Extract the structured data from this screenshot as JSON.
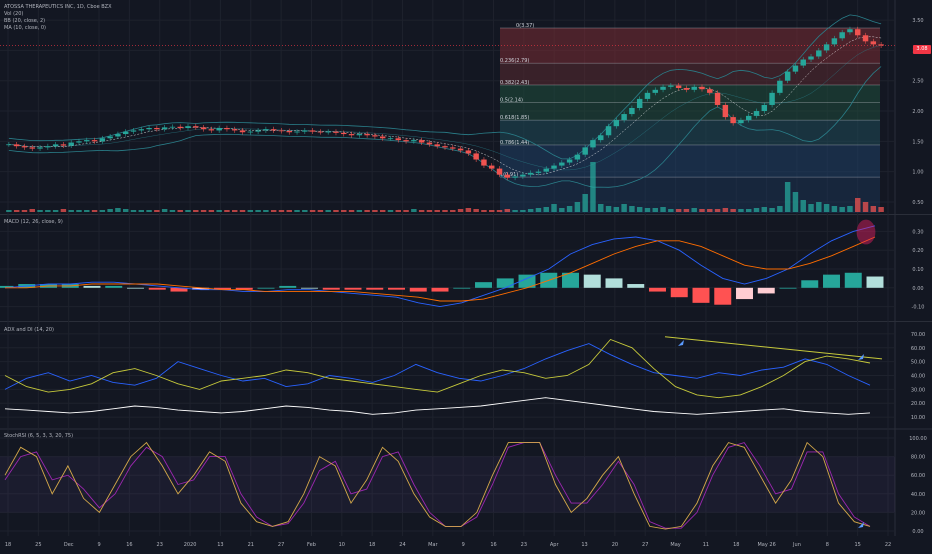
{
  "legend": {
    "title": "ATOSSA THERAPEUTICS INC, 1D, Cboe BZX",
    "vol": "Vol (20)",
    "bb": "BB (20, close, 2)",
    "ma": "MA (10, close, 0)"
  },
  "last_price": "3.08",
  "indicator_titles": {
    "macd": "MACD (12, 26, close, 9)",
    "adx": "ADX and DI (14, 20)",
    "stoch": "StochRSI (6, 5, 3, 3, 20, 75)"
  },
  "colors": {
    "up": "#26a69a",
    "down": "#ef5350",
    "background": "#131722",
    "bb": "#2a7f8a",
    "ma": "#ffffff",
    "fib_red": "#7a2b33",
    "fib_green": "#1f4f3c",
    "fib_blue": "#1f3f66",
    "adx": "#ffffff",
    "di_plus": "#2962ff",
    "di_minus": "#c6c93b",
    "stoch_k": "#d4a84a",
    "stoch_d": "#9c27b0",
    "macd": "#2962ff",
    "signal": "#ff6d00"
  },
  "chart_data": [
    {
      "type": "candlestick",
      "panel": "price",
      "x_tick_labels": [
        "18",
        "25",
        "Dec",
        "9",
        "16",
        "23",
        "2020",
        "13",
        "21",
        "27",
        "Feb",
        "10",
        "18",
        "24",
        "Mar",
        "9",
        "16",
        "23",
        "Apr",
        "13",
        "20",
        "27",
        "May",
        "11",
        "18",
        "May 26",
        "Jun",
        "8",
        "15",
        "22"
      ],
      "y_ticks": [
        "3.50",
        "3.00",
        "2.50",
        "2.00",
        "1.50",
        "1.00",
        "0.50"
      ],
      "y_range": [
        0.4,
        3.7
      ],
      "fib_levels": [
        {
          "ratio": "0(3.37)",
          "value": 3.37
        },
        {
          "ratio": "0.236(2.79)",
          "value": 2.79
        },
        {
          "ratio": "0.382(2.43)",
          "value": 2.43
        },
        {
          "ratio": "0.5(2.14)",
          "value": 2.14
        },
        {
          "ratio": "0.618(1.85)",
          "value": 1.85
        },
        {
          "ratio": "0.786(1.44)",
          "value": 1.44
        },
        {
          "ratio": "1(0.91)",
          "value": 0.91
        }
      ],
      "close_series": [
        1.45,
        1.42,
        1.4,
        1.38,
        1.4,
        1.42,
        1.45,
        1.43,
        1.48,
        1.5,
        1.52,
        1.5,
        1.55,
        1.58,
        1.62,
        1.66,
        1.68,
        1.7,
        1.72,
        1.7,
        1.73,
        1.74,
        1.72,
        1.75,
        1.73,
        1.7,
        1.68,
        1.72,
        1.7,
        1.68,
        1.65,
        1.66,
        1.68,
        1.7,
        1.68,
        1.67,
        1.65,
        1.66,
        1.68,
        1.66,
        1.65,
        1.66,
        1.64,
        1.62,
        1.6,
        1.62,
        1.6,
        1.58,
        1.55,
        1.55,
        1.52,
        1.5,
        1.52,
        1.48,
        1.45,
        1.42,
        1.4,
        1.38,
        1.35,
        1.3,
        1.2,
        1.1,
        1.05,
        0.95,
        0.9,
        0.92,
        0.95,
        0.98,
        1.0,
        1.05,
        1.1,
        1.15,
        1.2,
        1.28,
        1.4,
        1.52,
        1.6,
        1.75,
        1.85,
        1.95,
        2.05,
        2.2,
        2.3,
        2.35,
        2.4,
        2.42,
        2.38,
        2.35,
        2.4,
        2.36,
        2.3,
        2.1,
        1.9,
        1.8,
        1.85,
        1.92,
        2.0,
        2.1,
        2.3,
        2.5,
        2.65,
        2.75,
        2.85,
        2.9,
        3.0,
        3.1,
        3.2,
        3.3,
        3.35,
        3.25,
        3.15,
        3.1,
        3.08
      ]
    },
    {
      "type": "bar",
      "panel": "volume",
      "values": [
        2,
        2,
        2,
        3,
        2,
        2,
        2,
        3,
        2,
        2,
        2,
        2,
        2,
        3,
        4,
        3,
        2,
        2,
        2,
        2,
        3,
        2,
        2,
        2,
        2,
        2,
        2,
        2,
        2,
        2,
        2,
        2,
        2,
        2,
        2,
        2,
        2,
        2,
        2,
        2,
        2,
        2,
        2,
        2,
        2,
        2,
        2,
        2,
        2,
        2,
        2,
        2,
        3,
        2,
        2,
        2,
        2,
        2,
        3,
        4,
        3,
        2,
        2,
        2,
        3,
        2,
        2,
        3,
        4,
        5,
        8,
        4,
        6,
        10,
        18,
        50,
        8,
        6,
        5,
        8,
        6,
        5,
        4,
        4,
        5,
        3,
        3,
        3,
        4,
        3,
        3,
        3,
        4,
        3,
        3,
        3,
        4,
        5,
        4,
        6,
        30,
        20,
        12,
        8,
        10,
        8,
        6,
        5,
        6,
        14,
        10,
        6,
        5
      ]
    },
    {
      "type": "line",
      "panel": "macd",
      "y_ticks": [
        "0.30",
        "0.20",
        "0.10",
        "0.00",
        "-0.10"
      ],
      "y_range": [
        -0.15,
        0.35
      ],
      "macd": [
        0.0,
        0.01,
        0.02,
        0.02,
        0.03,
        0.03,
        0.02,
        0.01,
        0.0,
        -0.01,
        -0.01,
        -0.02,
        -0.02,
        -0.01,
        -0.01,
        -0.02,
        -0.03,
        -0.04,
        -0.05,
        -0.08,
        -0.1,
        -0.08,
        -0.04,
        0.0,
        0.05,
        0.1,
        0.18,
        0.23,
        0.26,
        0.27,
        0.25,
        0.2,
        0.12,
        0.05,
        0.02,
        0.05,
        0.1,
        0.18,
        0.25,
        0.3,
        0.33
      ],
      "signal": [
        0.0,
        0.0,
        0.01,
        0.01,
        0.02,
        0.02,
        0.02,
        0.02,
        0.01,
        0.0,
        -0.01,
        -0.01,
        -0.02,
        -0.02,
        -0.02,
        -0.02,
        -0.02,
        -0.03,
        -0.04,
        -0.05,
        -0.07,
        -0.07,
        -0.06,
        -0.03,
        0.0,
        0.04,
        0.08,
        0.13,
        0.18,
        0.22,
        0.25,
        0.25,
        0.22,
        0.17,
        0.12,
        0.1,
        0.1,
        0.13,
        0.17,
        0.22,
        0.27
      ],
      "histogram": [
        0.01,
        0.02,
        0.02,
        0.02,
        0.01,
        0.01,
        0.0,
        -0.01,
        -0.02,
        -0.01,
        -0.01,
        -0.01,
        0.0,
        0.01,
        0.0,
        -0.01,
        -0.01,
        -0.01,
        -0.01,
        -0.02,
        -0.02,
        0.0,
        0.03,
        0.05,
        0.07,
        0.08,
        0.08,
        0.07,
        0.05,
        0.02,
        -0.02,
        -0.05,
        -0.08,
        -0.09,
        -0.06,
        -0.03,
        0.0,
        0.04,
        0.07,
        0.08,
        0.06
      ]
    },
    {
      "type": "line",
      "panel": "adx",
      "y_ticks": [
        "70.00",
        "60.00",
        "50.00",
        "40.00",
        "30.00",
        "20.00",
        "10.00"
      ],
      "y_range": [
        5,
        75
      ],
      "adx": [
        16,
        15,
        14,
        13,
        14,
        16,
        18,
        17,
        15,
        14,
        13,
        14,
        16,
        18,
        17,
        15,
        14,
        12,
        13,
        15,
        16,
        17,
        18,
        20,
        22,
        24,
        22,
        20,
        18,
        16,
        14,
        13,
        12,
        13,
        14,
        15,
        16,
        14,
        13,
        12,
        13
      ],
      "di_plus": [
        30,
        38,
        42,
        36,
        40,
        35,
        33,
        38,
        50,
        45,
        40,
        36,
        38,
        32,
        34,
        40,
        38,
        35,
        40,
        48,
        42,
        38,
        36,
        40,
        45,
        52,
        58,
        63,
        55,
        48,
        42,
        40,
        38,
        42,
        40,
        44,
        46,
        52,
        48,
        40,
        33
      ],
      "di_minus": [
        40,
        32,
        28,
        30,
        34,
        42,
        45,
        40,
        34,
        30,
        36,
        38,
        40,
        44,
        42,
        38,
        36,
        34,
        32,
        30,
        28,
        34,
        40,
        44,
        42,
        38,
        40,
        48,
        66,
        60,
        45,
        32,
        26,
        24,
        26,
        32,
        40,
        50,
        54,
        52,
        49
      ]
    },
    {
      "type": "line",
      "panel": "stochrsi",
      "y_ticks": [
        "100.00",
        "80.00",
        "60.00",
        "40.00",
        "20.00",
        "0.00"
      ],
      "y_range": [
        0,
        100
      ],
      "k": [
        60,
        90,
        80,
        40,
        70,
        35,
        20,
        50,
        80,
        95,
        70,
        40,
        60,
        85,
        75,
        30,
        10,
        5,
        10,
        40,
        80,
        70,
        30,
        55,
        90,
        75,
        40,
        15,
        5,
        5,
        20,
        60,
        95,
        95,
        95,
        50,
        20,
        35,
        60,
        80,
        40,
        5,
        2,
        5,
        30,
        70,
        95,
        90,
        60,
        30,
        55,
        95,
        80,
        30,
        10,
        5
      ],
      "d": [
        55,
        80,
        85,
        55,
        60,
        45,
        25,
        40,
        70,
        90,
        80,
        50,
        55,
        80,
        80,
        40,
        15,
        5,
        8,
        30,
        65,
        75,
        40,
        45,
        80,
        85,
        50,
        20,
        5,
        5,
        15,
        50,
        90,
        95,
        95,
        60,
        30,
        30,
        50,
        75,
        50,
        10,
        3,
        3,
        20,
        60,
        90,
        95,
        70,
        40,
        45,
        85,
        85,
        40,
        15,
        5
      ]
    }
  ]
}
